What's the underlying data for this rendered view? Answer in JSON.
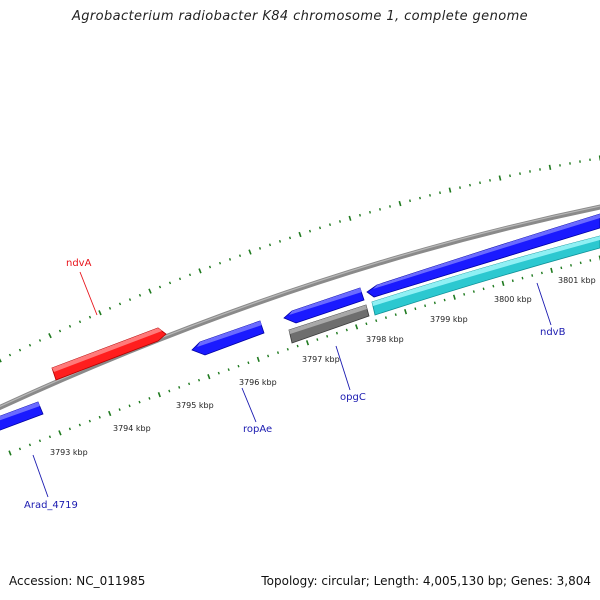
{
  "title": "Agrobacterium radiobacter K84 chromosome 1, complete genome",
  "footer": {
    "accession": "Accession: NC_011985",
    "topology": "Topology: circular; Length: 4,005,130 bp; Genes: 3,804"
  },
  "ruler": {
    "tick_labels": [
      "3793 kbp",
      "3794 kbp",
      "3795 kbp",
      "3796 kbp",
      "3797 kbp",
      "3798 kbp",
      "3799 kbp",
      "3800 kbp",
      "3801 kbp"
    ]
  },
  "gene_labels": [
    {
      "name": "ndvA",
      "color": "#e8141b"
    },
    {
      "name": "ropAe",
      "color": "#1a1ab0"
    },
    {
      "name": "opgC",
      "color": "#1a1ab0"
    },
    {
      "name": "ndvB",
      "color": "#1a1ab0"
    },
    {
      "name": "Arad_4719",
      "color": "#1a1ab0"
    }
  ],
  "colors": {
    "backbone": "#808080",
    "tick": "#1f7a1f",
    "gene_red": "#ff2020",
    "gene_blue": "#1a1aff",
    "gene_cyan": "#2cc8d0",
    "gene_gray": "#6e6e6e"
  }
}
